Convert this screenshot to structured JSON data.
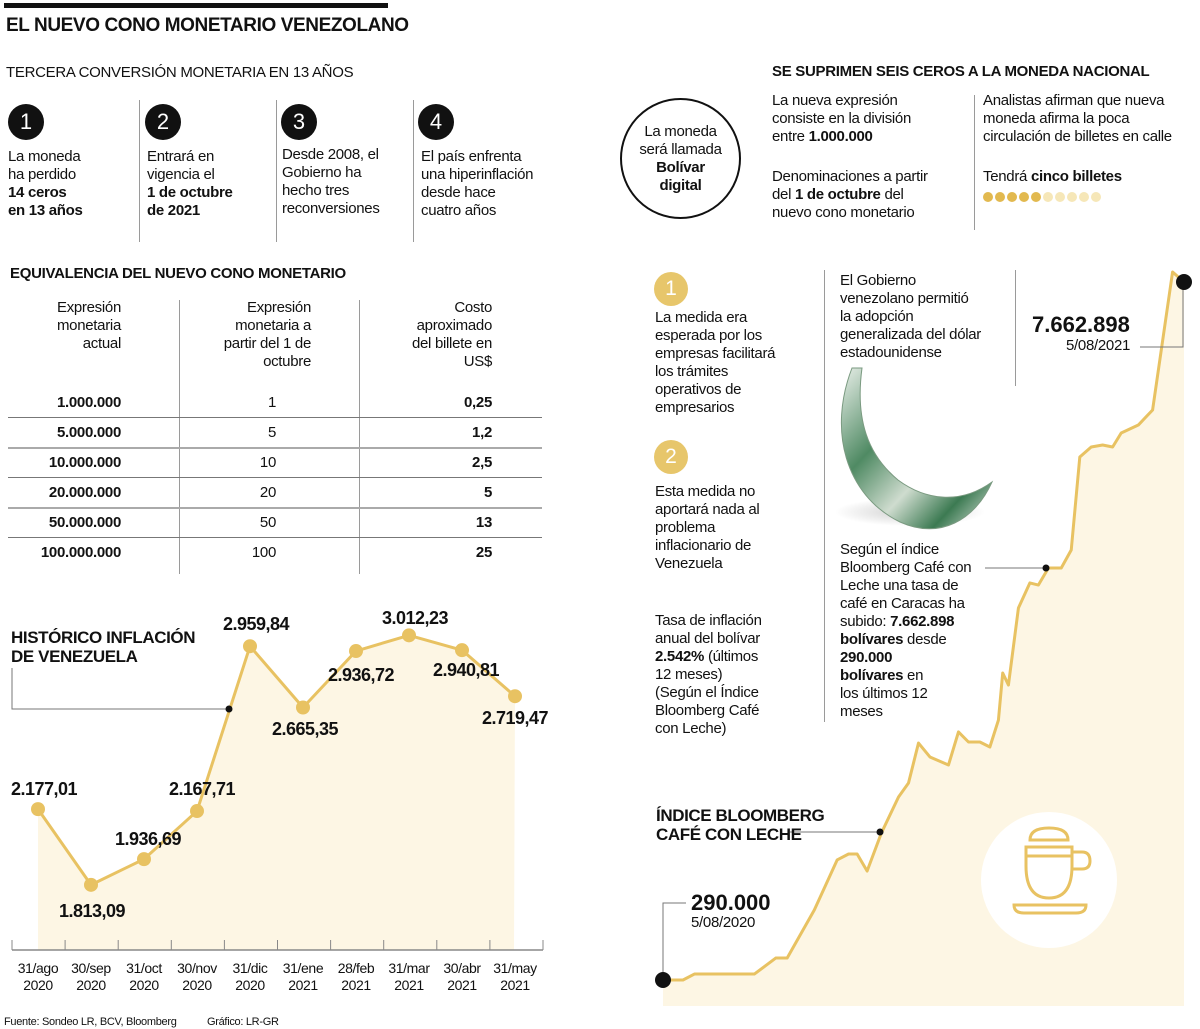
{
  "header": {
    "title": "EL NUEVO CONO MONETARIO VENEZOLANO",
    "subtitle": "TERCERA CONVERSIÓN MONETARIA EN 13 AÑOS"
  },
  "facts": [
    {
      "number": "1",
      "text": "La moneda\nha perdido",
      "bold": "14 ceros\nen 13 años"
    },
    {
      "number": "2",
      "text": "Entrará en\nvigencia el",
      "bold": "1 de octubre\nde 2021"
    },
    {
      "number": "3",
      "text": "Desde 2008, el\nGobierno ha\nhecho tres\nreconversiones",
      "bold": ""
    },
    {
      "number": "4",
      "text": "El país enfrenta\nuna hiperinflación\ndesde hace\ncuatro años",
      "bold": ""
    }
  ],
  "currency_circle": {
    "text": "La moneda\nserá llamada",
    "bold": "Bolívar\ndigital"
  },
  "six_zeros": {
    "heading": "SE SUPRIMEN SEIS CEROS A LA MONEDA NACIONAL",
    "division": {
      "text": "La nueva expresión\nconsiste en la división\nentre ",
      "bold": "1.000.000"
    },
    "denominations": {
      "text1": "Denominaciones a partir\ndel ",
      "bold": "1 de octubre",
      "text2": " del\nnuevo cono monetario"
    },
    "analysts": "Analistas afirman que nueva\nmoneda afirma la poca\ncirculación de billetes en calle",
    "bills": {
      "text": "Tendrá ",
      "bold": "cinco billetes",
      "filled": 5,
      "total": 10,
      "filled_color": "#e2b94f",
      "empty_color": "#f6e7b8"
    }
  },
  "equivalence_table": {
    "title": "EQUIVALENCIA DEL NUEVO CONO MONETARIO",
    "headers": [
      "Expresión\nmonetaria\nactual",
      "Expresión\nmonetaria a\npartir del 1 de\noctubre",
      "Costo\naproximado\ndel billete en\nUS$"
    ],
    "rows": [
      [
        "1.000.000",
        "1",
        "0,25"
      ],
      [
        "5.000.000",
        "5",
        "1,2"
      ],
      [
        "10.000.000",
        "10",
        "2,5"
      ],
      [
        "20.000.000",
        "20",
        "5"
      ],
      [
        "50.000.000",
        "50",
        "13"
      ],
      [
        "100.000.000",
        "100",
        "25"
      ]
    ]
  },
  "notes": {
    "point1": {
      "number": "1",
      "text": "La medida era\nesperada por los\nempresas facilitará\nlos trámites\noperativos de\nempresarios"
    },
    "point2": {
      "number": "2",
      "text": "Esta medida no\naportará nada al\nproblema\ninflacionario de\nVenezuela"
    },
    "inflation_rate": {
      "text1": "Tasa de inflación\nanual del bolívar\n",
      "bold": "2.542%",
      "text2": " (últimos\n12 meses)\n(Según el Índice\nBloomberg Café\ncon Leche)"
    },
    "dollar": "El Gobierno\nvenezolano permitió\nla adopción\ngeneralizada del dólar\nestadounidense",
    "bloomberg": {
      "text1": "Según el índice\nBloomberg Café con\nLeche una tasa de\ncafé en Caracas ha\nsubido: ",
      "bold1": "7.662.898\nbolívares",
      "text2": " desde\n",
      "bold2": "290.000\nbolívares",
      "text3": " en\nlos últimos 12\nmeses"
    }
  },
  "colors": {
    "accent": "#e8c262",
    "fill": "#fdf6e4",
    "ink": "#111111"
  },
  "chart_data": [
    {
      "type": "area",
      "title": "HISTÓRICO INFLACIÓN\nDE VENEZUELA",
      "categories": [
        "31/ago\n2020",
        "30/sep\n2020",
        "31/oct\n2020",
        "30/nov\n2020",
        "31/dic\n2020",
        "31/ene\n2021",
        "28/feb\n2021",
        "31/mar\n2021",
        "30/abr\n2021",
        "31/may\n2021"
      ],
      "values": [
        2177.01,
        1813.09,
        1936.69,
        2167.71,
        2959.84,
        2665.35,
        2936.72,
        3012.23,
        2940.81,
        2719.47
      ],
      "data_labels": [
        "2.177,01",
        "1.813,09",
        "1.936,69",
        "2.167,71",
        "2.959,84",
        "2.665,35",
        "2.936,72",
        "3.012,23",
        "2.940,81",
        "2.719,47"
      ],
      "ylim": [
        1500,
        3230
      ],
      "grid": false,
      "axis_y_visible": false
    },
    {
      "type": "area",
      "title": "ÍNDICE BLOOMBERG\nCAFÉ CON LECHE",
      "x": [
        "2020-08-05",
        "2020-08-19",
        "2020-08-27",
        "2020-10-08",
        "2020-10-23",
        "2020-10-31",
        "2020-11-19",
        "2020-12-05",
        "2020-12-13",
        "2020-12-19",
        "2020-12-26",
        "2021-01-05",
        "2021-01-17",
        "2021-01-24",
        "2021-01-31",
        "2021-02-08",
        "2021-02-21",
        "2021-02-28",
        "2021-03-07",
        "2021-03-15",
        "2021-03-22",
        "2021-03-28",
        "2021-03-31",
        "2021-04-04",
        "2021-04-11",
        "2021-04-19",
        "2021-04-25",
        "2021-05-02",
        "2021-05-11",
        "2021-05-18",
        "2021-05-24",
        "2021-06-01",
        "2021-06-09",
        "2021-06-16",
        "2021-06-22",
        "2021-07-04",
        "2021-07-14",
        "2021-07-28",
        "2021-08-05"
      ],
      "values": [
        290000,
        290000,
        353000,
        353000,
        522000,
        522000,
        1029000,
        1558000,
        1621000,
        1621000,
        1441000,
        1843000,
        2223000,
        2371000,
        2793000,
        2646000,
        2561000,
        2910000,
        2804000,
        2804000,
        2751000,
        3036000,
        3533000,
        3406000,
        4219000,
        4484000,
        4462000,
        4642000,
        4642000,
        4832000,
        5814000,
        5920000,
        5941000,
        5920000,
        6068000,
        6152000,
        6311000,
        7769000,
        7662898
      ],
      "start": {
        "value_label": "290.000",
        "date_label": "5/08/2020"
      },
      "end": {
        "value_label": "7.662.898",
        "date_label": "5/08/2021"
      },
      "grid": false,
      "axes_visible": false
    }
  ],
  "footer": {
    "source": "Fuente: Sondeo LR, BCV, Bloomberg",
    "credit": "Gráfico: LR-GR"
  }
}
